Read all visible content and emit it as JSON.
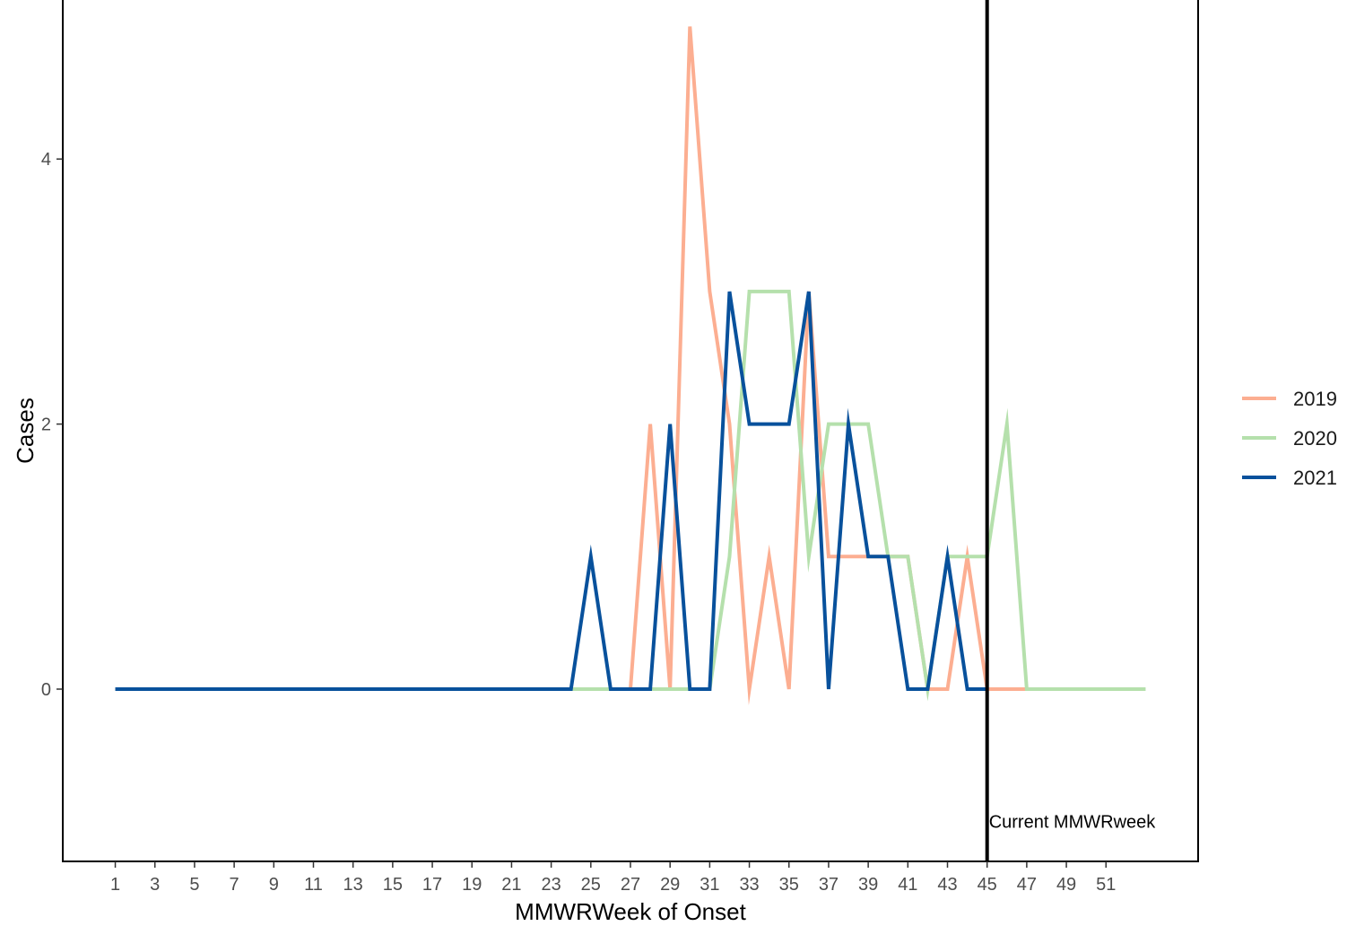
{
  "chart_data": {
    "type": "line",
    "xlabel": "MMWRWeek of Onset",
    "ylabel": "Cases",
    "xlim": [
      -1.65,
      55.65
    ],
    "ylim": [
      -1.3,
      5.2
    ],
    "x_ticks": [
      1,
      3,
      5,
      7,
      9,
      11,
      13,
      15,
      17,
      19,
      21,
      23,
      25,
      27,
      29,
      31,
      33,
      35,
      37,
      39,
      41,
      43,
      45,
      47,
      49,
      51
    ],
    "y_ticks": [
      0,
      2,
      4
    ],
    "grid": false,
    "legend_position": "right",
    "reference_line": {
      "x": 45,
      "label": "Current MMWRweek"
    },
    "series": [
      {
        "name": "2019",
        "color": "#fcae91",
        "x": [
          1,
          2,
          3,
          4,
          5,
          6,
          7,
          8,
          9,
          10,
          11,
          12,
          13,
          14,
          15,
          16,
          17,
          18,
          19,
          20,
          21,
          22,
          23,
          24,
          25,
          26,
          27,
          28,
          29,
          30,
          31,
          32,
          33,
          34,
          35,
          36,
          37,
          38,
          39,
          40,
          41,
          42,
          43,
          44,
          45,
          46,
          47
        ],
        "values": [
          0,
          0,
          0,
          0,
          0,
          0,
          0,
          0,
          0,
          0,
          0,
          0,
          0,
          0,
          0,
          0,
          0,
          0,
          0,
          0,
          0,
          0,
          0,
          0,
          0,
          0,
          0,
          2,
          0,
          5,
          3,
          2,
          0,
          1,
          0,
          3,
          1,
          1,
          1,
          1,
          1,
          0,
          0,
          1,
          0,
          0,
          0
        ]
      },
      {
        "name": "2020",
        "color": "#b5e0ac",
        "x": [
          1,
          2,
          3,
          4,
          5,
          6,
          7,
          8,
          9,
          10,
          11,
          12,
          13,
          14,
          15,
          16,
          17,
          18,
          19,
          20,
          21,
          22,
          23,
          24,
          25,
          26,
          27,
          28,
          29,
          30,
          31,
          32,
          33,
          34,
          35,
          36,
          37,
          38,
          39,
          40,
          41,
          42,
          43,
          44,
          45,
          46,
          47,
          48,
          49,
          50,
          51,
          52,
          53
        ],
        "values": [
          0,
          0,
          0,
          0,
          0,
          0,
          0,
          0,
          0,
          0,
          0,
          0,
          0,
          0,
          0,
          0,
          0,
          0,
          0,
          0,
          0,
          0,
          0,
          0,
          0,
          0,
          0,
          0,
          0,
          0,
          0,
          1,
          3,
          3,
          3,
          1,
          2,
          2,
          2,
          1,
          1,
          0,
          1,
          1,
          1,
          2,
          0,
          0,
          0,
          0,
          0,
          0,
          0
        ]
      },
      {
        "name": "2021",
        "color": "#08519c",
        "x": [
          1,
          2,
          3,
          4,
          5,
          6,
          7,
          8,
          9,
          10,
          11,
          12,
          13,
          14,
          15,
          16,
          17,
          18,
          19,
          20,
          21,
          22,
          23,
          24,
          25,
          26,
          27,
          28,
          29,
          30,
          31,
          32,
          33,
          34,
          35,
          36,
          37,
          38,
          39,
          40,
          41,
          42,
          43,
          44,
          45
        ],
        "values": [
          0,
          0,
          0,
          0,
          0,
          0,
          0,
          0,
          0,
          0,
          0,
          0,
          0,
          0,
          0,
          0,
          0,
          0,
          0,
          0,
          0,
          0,
          0,
          0,
          1,
          0,
          0,
          0,
          2,
          0,
          0,
          3,
          2,
          2,
          2,
          3,
          0,
          2,
          1,
          1,
          0,
          0,
          1,
          0,
          0
        ]
      }
    ]
  }
}
